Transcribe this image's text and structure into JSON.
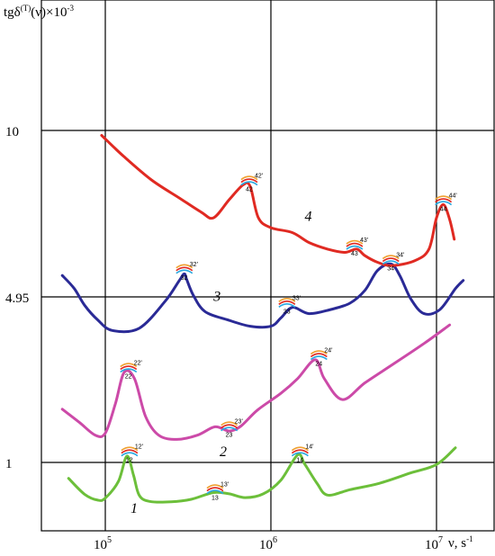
{
  "chart_data": {
    "type": "line",
    "title": "",
    "ylabel": {
      "base": "tgδ",
      "superscript": "(T)",
      "suffix": "(ν)×10",
      "power": "-3"
    },
    "xlabel": {
      "base": "ν, s",
      "power": "-1"
    },
    "x_scale": "log",
    "xlim": [
      50000,
      15000000
    ],
    "y_ticks": [
      {
        "label": "1",
        "value": 1
      },
      {
        "label": "4.95",
        "value": 4.95
      },
      {
        "label": "10",
        "value": 10
      }
    ],
    "x_ticks": [
      {
        "base": "10",
        "power": "5",
        "value": 100000
      },
      {
        "base": "10",
        "power": "6",
        "value": 1000000
      },
      {
        "base": "10",
        "power": "7",
        "value": 10000000
      }
    ],
    "grid": true,
    "series": [
      {
        "name": "1",
        "color": "#6cbf3a",
        "points": [
          [
            60000,
            0.62
          ],
          [
            75000,
            0.24
          ],
          [
            90000,
            0.1
          ],
          [
            100000,
            0.15
          ],
          [
            120000,
            0.55
          ],
          [
            135000,
            1.15
          ],
          [
            148000,
            0.7
          ],
          [
            160000,
            0.22
          ],
          [
            185000,
            0.07
          ],
          [
            250000,
            0.06
          ],
          [
            330000,
            0.12
          ],
          [
            450000,
            0.28
          ],
          [
            560000,
            0.25
          ],
          [
            700000,
            0.16
          ],
          [
            900000,
            0.25
          ],
          [
            1150000,
            0.58
          ],
          [
            1450000,
            1.18
          ],
          [
            1600000,
            0.96
          ],
          [
            1900000,
            0.5
          ],
          [
            2200000,
            0.22
          ],
          [
            3000000,
            0.35
          ],
          [
            4500000,
            0.5
          ],
          [
            7000000,
            0.75
          ],
          [
            10000000,
            0.95
          ],
          [
            13000000,
            1.35
          ]
        ]
      },
      {
        "name": "2",
        "color": "#cc4aa8",
        "points": [
          [
            55000,
            2.27
          ],
          [
            70000,
            1.95
          ],
          [
            87000,
            1.65
          ],
          [
            100000,
            1.7
          ],
          [
            115000,
            2.4
          ],
          [
            130000,
            3.15
          ],
          [
            150000,
            3.0
          ],
          [
            175000,
            2.1
          ],
          [
            210000,
            1.65
          ],
          [
            270000,
            1.55
          ],
          [
            360000,
            1.65
          ],
          [
            460000,
            1.85
          ],
          [
            560000,
            1.75
          ],
          [
            660000,
            1.87
          ],
          [
            830000,
            2.25
          ],
          [
            1150000,
            2.65
          ],
          [
            1450000,
            3.0
          ],
          [
            1850000,
            3.45
          ],
          [
            2100000,
            3.0
          ],
          [
            2700000,
            2.5
          ],
          [
            3700000,
            2.9
          ],
          [
            5500000,
            3.35
          ],
          [
            8500000,
            3.85
          ],
          [
            12000000,
            4.28
          ]
        ]
      },
      {
        "name": "3",
        "color": "#2a2a96",
        "points": [
          [
            55000,
            5.6
          ],
          [
            65000,
            5.2
          ],
          [
            75000,
            4.75
          ],
          [
            90000,
            4.4
          ],
          [
            110000,
            4.15
          ],
          [
            160000,
            4.2
          ],
          [
            230000,
            4.85
          ],
          [
            280000,
            5.45
          ],
          [
            300000,
            5.65
          ],
          [
            310000,
            5.48
          ],
          [
            340000,
            5.0
          ],
          [
            400000,
            4.6
          ],
          [
            550000,
            4.4
          ],
          [
            750000,
            4.25
          ],
          [
            1000000,
            4.25
          ],
          [
            1150000,
            4.45
          ],
          [
            1350000,
            4.7
          ],
          [
            1700000,
            4.55
          ],
          [
            2300000,
            4.65
          ],
          [
            3000000,
            4.8
          ],
          [
            3700000,
            5.15
          ],
          [
            4400000,
            5.75
          ],
          [
            5300000,
            5.95
          ],
          [
            6000000,
            5.6
          ],
          [
            7000000,
            4.9
          ],
          [
            8400000,
            4.55
          ],
          [
            10500000,
            4.65
          ],
          [
            13000000,
            5.2
          ],
          [
            14500000,
            5.45
          ]
        ]
      },
      {
        "name": "4",
        "color": "#e02a22",
        "points": [
          [
            95000,
            9.85
          ],
          [
            130000,
            9.2
          ],
          [
            190000,
            8.5
          ],
          [
            280000,
            7.95
          ],
          [
            380000,
            7.52
          ],
          [
            450000,
            7.35
          ],
          [
            560000,
            7.9
          ],
          [
            680000,
            8.35
          ],
          [
            750000,
            8.3
          ],
          [
            840000,
            7.35
          ],
          [
            1000000,
            7.05
          ],
          [
            1350000,
            6.9
          ],
          [
            1700000,
            6.6
          ],
          [
            2200000,
            6.4
          ],
          [
            2800000,
            6.3
          ],
          [
            3300000,
            6.4
          ],
          [
            3700000,
            6.2
          ],
          [
            4400000,
            6.0
          ],
          [
            5400000,
            5.9
          ],
          [
            7400000,
            6.05
          ],
          [
            9000000,
            6.4
          ],
          [
            10000000,
            7.35
          ],
          [
            11000000,
            7.75
          ],
          [
            12000000,
            7.3
          ],
          [
            12800000,
            6.7
          ]
        ]
      }
    ],
    "curve_labels": [
      {
        "text": "1",
        "x": 142000,
        "y": -0.2
      },
      {
        "text": "2",
        "x": 490000,
        "y": 1.15
      },
      {
        "text": "3",
        "x": 450000,
        "y": 4.85
      },
      {
        "text": "4",
        "x": 1600000,
        "y": 7.25
      }
    ],
    "peaks": [
      {
        "main": "12",
        "primed": "12'",
        "x": 140000,
        "y": 1.2,
        "color": "#6cbf3a"
      },
      {
        "main": "13",
        "primed": "13'",
        "x": 460000,
        "y": 0.3,
        "color": "#6cbf3a"
      },
      {
        "main": "14",
        "primed": "14'",
        "x": 1500000,
        "y": 1.2,
        "color": "#6cbf3a"
      },
      {
        "main": "22",
        "primed": "22'",
        "x": 138000,
        "y": 3.2,
        "color": "#cc4aa8"
      },
      {
        "main": "23",
        "primed": "23'",
        "x": 560000,
        "y": 1.8,
        "color": "#cc4aa8"
      },
      {
        "main": "24",
        "primed": "24'",
        "x": 1950000,
        "y": 3.5,
        "color": "#cc4aa8"
      },
      {
        "main": "32",
        "primed": "32'",
        "x": 300000,
        "y": 5.72,
        "color": "#2a2a96"
      },
      {
        "main": "33",
        "primed": "33'",
        "x": 1250000,
        "y": 4.75,
        "color": "#2a2a96"
      },
      {
        "main": "34",
        "primed": "34'",
        "x": 5300000,
        "y": 6.0,
        "color": "#2a2a96"
      },
      {
        "main": "42",
        "primed": "42'",
        "x": 740000,
        "y": 8.4,
        "color": "#e02a22"
      },
      {
        "main": "43",
        "primed": "43'",
        "x": 3200000,
        "y": 6.45,
        "color": "#e02a22"
      },
      {
        "main": "44",
        "primed": "44'",
        "x": 11000000,
        "y": 7.8,
        "color": "#e02a22"
      }
    ]
  }
}
